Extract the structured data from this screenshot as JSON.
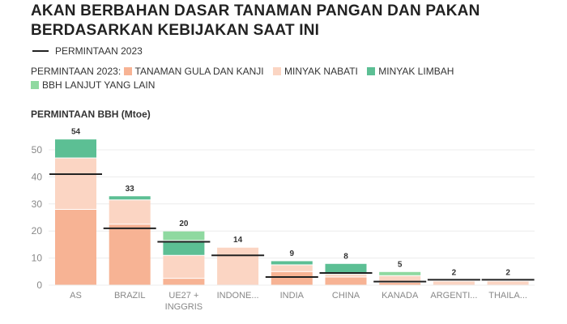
{
  "title": "AKAN BERBAHAN DASAR TANAMAN PANGAN DAN PAKAN BERDASARKAN KEBIJAKAN SAAT INI",
  "chart_data": {
    "type": "bar",
    "stacked": true,
    "ylabel": "PERMINTAAN BBH (Mtoe)",
    "ylim": [
      0,
      55
    ],
    "yticks": [
      0,
      10,
      20,
      30,
      40,
      50
    ],
    "grid": true,
    "legend_placement": "top",
    "line_legend": "PERMINTAAN 2023",
    "stack_legend_title": "PERMINTAAN 2023:",
    "categories": [
      "AS",
      "BRAZIL",
      "UE27 + INGGRIS",
      "INDONE...",
      "INDIA",
      "CHINA",
      "KANADA",
      "ARGENTI...",
      "THAILA..."
    ],
    "totals": [
      54,
      33,
      20,
      14,
      9,
      8,
      5,
      2,
      2
    ],
    "series": [
      {
        "name": "TANAMAN GULA DAN KANJI",
        "color": "#f7b394",
        "values": [
          28,
          22.5,
          2.5,
          0,
          5,
          3,
          1,
          0,
          0
        ]
      },
      {
        "name": "MINYAK NABATI",
        "color": "#fbd5c3",
        "values": [
          19,
          9,
          8.5,
          14,
          2.5,
          1,
          2.5,
          1.5,
          1.5
        ]
      },
      {
        "name": "MINYAK LIMBAH",
        "color": "#5cbf94",
        "values": [
          7,
          1.5,
          5.5,
          0,
          1.5,
          4,
          0,
          0,
          0
        ]
      },
      {
        "name": "BBH LANJUT YANG LAIN",
        "color": "#8fd9a0",
        "values": [
          0,
          0,
          3.5,
          0,
          0,
          0,
          1.5,
          0,
          0
        ]
      }
    ],
    "line_values": [
      41,
      21,
      16,
      11,
      3,
      4.5,
      1.3,
      2,
      2
    ]
  }
}
